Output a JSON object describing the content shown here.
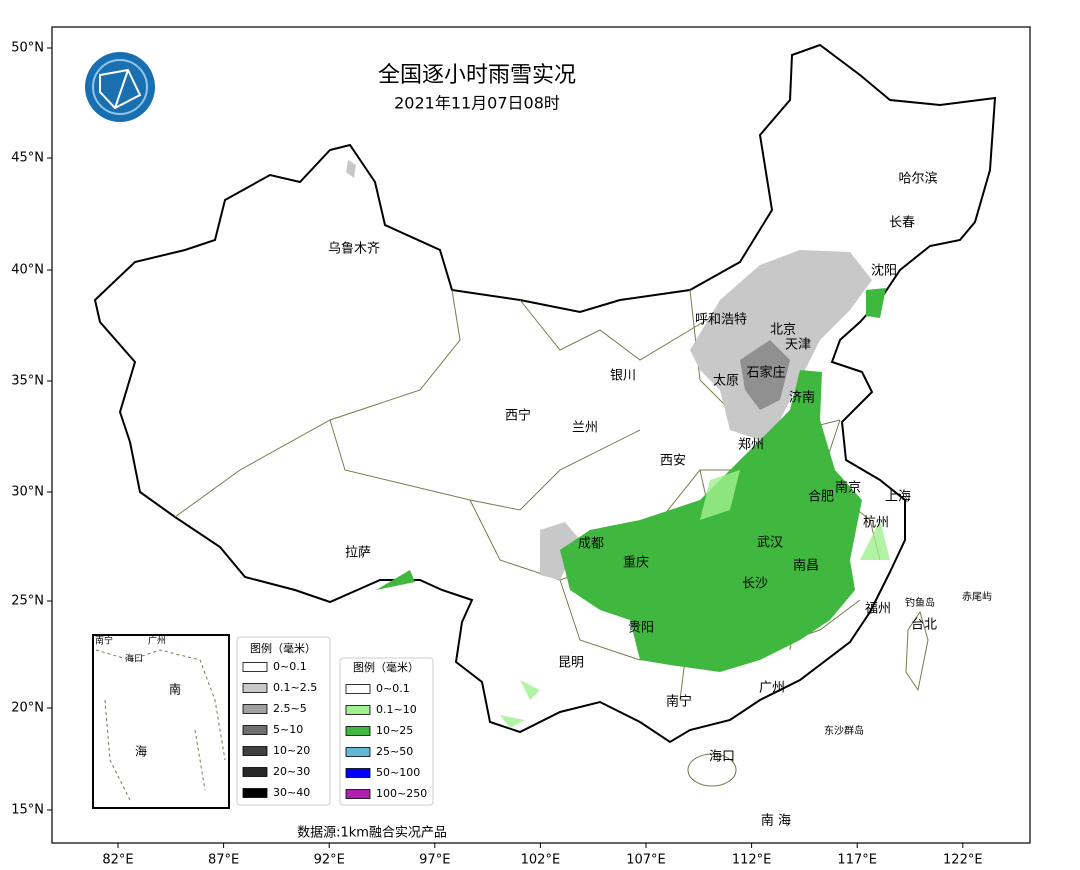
{
  "title": "全国逐小时雨雪实况",
  "subtitle": "2021年11月07日08时",
  "lat_labels": [
    "50°N",
    "45°N",
    "40°N",
    "35°N",
    "30°N",
    "25°N",
    "20°N",
    "15°N"
  ],
  "lon_labels": [
    "82°E",
    "87°E",
    "92°E",
    "97°E",
    "102°E",
    "107°E",
    "112°E",
    "117°E",
    "122°E"
  ],
  "cities": [
    "乌鲁木齐",
    "哈尔滨",
    "长春",
    "沈阳",
    "呼和浩特",
    "北京",
    "天津",
    "银川",
    "太原",
    "石家庄",
    "济南",
    "西宁",
    "兰州",
    "郑州",
    "西安",
    "南京",
    "合肥",
    "上海",
    "杭州",
    "成都",
    "武汉",
    "拉萨",
    "重庆",
    "南昌",
    "长沙",
    "福州",
    "钓鱼岛",
    "赤尾屿",
    "台北",
    "贵阳",
    "昆明",
    "广州",
    "南宁",
    "东沙群岛",
    "海口",
    "南 海"
  ],
  "inset_labels": [
    "南宁",
    "广州",
    "海口",
    "南",
    "海"
  ],
  "snow_legend": {
    "title": "图例（毫米）",
    "items": [
      {
        "label": "0~0.1",
        "color": "#ffffff"
      },
      {
        "label": "0.1~2.5",
        "color": "#c8c8c8"
      },
      {
        "label": "2.5~5",
        "color": "#a0a0a0"
      },
      {
        "label": "5~10",
        "color": "#707070"
      },
      {
        "label": "10~20",
        "color": "#404040"
      },
      {
        "label": "20~30",
        "color": "#282828"
      },
      {
        "label": "30~40",
        "color": "#000000"
      }
    ]
  },
  "rain_legend": {
    "title": "图例（毫米）",
    "items": [
      {
        "label": "0~0.1",
        "color": "#ffffff"
      },
      {
        "label": "0.1~10",
        "color": "#a0f090"
      },
      {
        "label": "10~25",
        "color": "#40b840"
      },
      {
        "label": "25~50",
        "color": "#60b8d8"
      },
      {
        "label": "50~100",
        "color": "#0000ff"
      },
      {
        "label": "100~250",
        "color": "#b020b0"
      }
    ]
  },
  "source": "数据源:1km融合实况产品"
}
